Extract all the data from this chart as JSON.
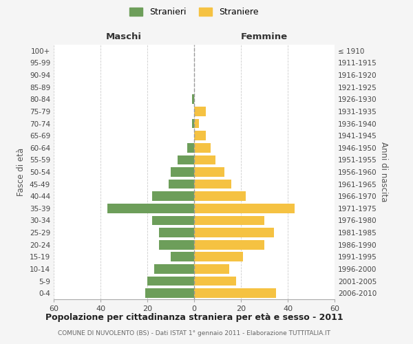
{
  "age_groups": [
    "0-4",
    "5-9",
    "10-14",
    "15-19",
    "20-24",
    "25-29",
    "30-34",
    "35-39",
    "40-44",
    "45-49",
    "50-54",
    "55-59",
    "60-64",
    "65-69",
    "70-74",
    "75-79",
    "80-84",
    "85-89",
    "90-94",
    "95-99",
    "100+"
  ],
  "birth_years": [
    "2006-2010",
    "2001-2005",
    "1996-2000",
    "1991-1995",
    "1986-1990",
    "1981-1985",
    "1976-1980",
    "1971-1975",
    "1966-1970",
    "1961-1965",
    "1956-1960",
    "1951-1955",
    "1946-1950",
    "1941-1945",
    "1936-1940",
    "1931-1935",
    "1926-1930",
    "1921-1925",
    "1916-1920",
    "1911-1915",
    "≤ 1910"
  ],
  "maschi": [
    21,
    20,
    17,
    10,
    15,
    15,
    18,
    37,
    18,
    11,
    10,
    7,
    3,
    0,
    1,
    0,
    1,
    0,
    0,
    0,
    0
  ],
  "femmine": [
    35,
    18,
    15,
    21,
    30,
    34,
    30,
    43,
    22,
    16,
    13,
    9,
    7,
    5,
    2,
    5,
    0,
    0,
    0,
    0,
    0
  ],
  "color_maschi": "#6d9e5a",
  "color_femmine": "#f5c242",
  "title": "Popolazione per cittadinanza straniera per età e sesso - 2011",
  "subtitle": "COMUNE DI NUVOLENTO (BS) - Dati ISTAT 1° gennaio 2011 - Elaborazione TUTTITALIA.IT",
  "label_maschi": "Maschi",
  "label_femmine": "Femmine",
  "ylabel_left": "Fasce di età",
  "ylabel_right": "Anni di nascita",
  "legend_maschi": "Stranieri",
  "legend_femmine": "Straniere",
  "xlim": 60,
  "background_color": "#f5f5f5",
  "bar_background": "#ffffff"
}
